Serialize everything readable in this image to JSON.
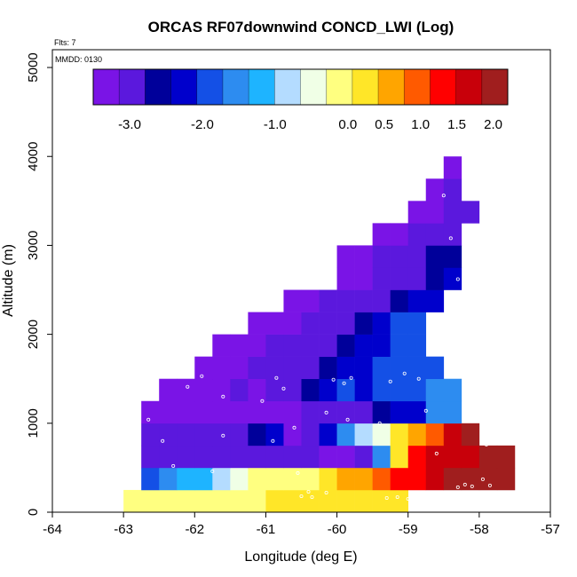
{
  "chart_data": {
    "type": "heatmap",
    "title": "ORCAS RF07downwind CONCD_LWI (Log)",
    "xlabel": "Longitude (deg E)",
    "ylabel": "Altitude (m)",
    "flts_note": "Flts: 7",
    "mmdd_note": "MMDD: 0130",
    "xlim": [
      -64,
      -57
    ],
    "ylim": [
      0,
      5200
    ],
    "x_ticks": [
      -64,
      -63,
      -62,
      -61,
      -60,
      -59,
      -58,
      -57
    ],
    "x_tick_labels": [
      "-64",
      "-63",
      "-62",
      "-61",
      "-60",
      "-59",
      "-58",
      "-57"
    ],
    "y_ticks": [
      0,
      1000,
      2000,
      3000,
      4000,
      5000
    ],
    "y_tick_labels": [
      "0",
      "1000",
      "2000",
      "3000",
      "4000",
      "5000"
    ],
    "colorbar": {
      "range": [
        -3.5,
        2.2
      ],
      "tick_values": [
        -3.0,
        -2.0,
        -1.0,
        0.0,
        0.5,
        1.0,
        1.5,
        2.0
      ],
      "tick_labels": [
        "-3.0",
        "-2.0",
        "-1.0",
        "0.0",
        "0.5",
        "1.0",
        "1.5",
        "2.0"
      ],
      "colors": [
        "#7a14e6",
        "#5b18dd",
        "#00009a",
        "#0000cc",
        "#1450e6",
        "#2d8cf0",
        "#1eb4ff",
        "#b4dcff",
        "#f0ffe6",
        "#ffff80",
        "#ffe628",
        "#ffa500",
        "#ff5a00",
        "#ff0000",
        "#c8000a",
        "#a01e1e"
      ]
    },
    "grid": false,
    "legend": "colorbar-top",
    "cell_size": {
      "dlon": 0.25,
      "dalt": 250
    },
    "rows": [
      {
        "alt_bottom": 0,
        "lon_start": -63.0,
        "values": [
          -0.2,
          -0.2,
          -0.2,
          -0.2,
          -0.2,
          -0.2,
          -0.1,
          -0.1,
          0.1,
          0.1,
          0.2,
          0.2,
          0.3,
          0.3,
          0.3,
          0.3
        ]
      },
      {
        "alt_bottom": 250,
        "lon_start": -62.75,
        "values": [
          -1.8,
          -1.5,
          -1.3,
          -1.1,
          -0.9,
          -0.5,
          -0.1,
          0.0,
          0.0,
          0.0,
          0.3,
          0.5,
          0.7,
          0.9,
          1.2,
          1.4,
          1.6,
          1.9,
          2.0,
          2.0,
          2.1
        ]
      },
      {
        "alt_bottom": 500,
        "lon_start": -62.75,
        "values": [
          -3.0,
          -3.1,
          -3.0,
          -3.0,
          -2.9,
          -3.0,
          -3.0,
          -3.0,
          -3.0,
          -3.1,
          -3.3,
          -3.2,
          -3.0,
          -1.6,
          0.2,
          1.4,
          1.6,
          1.6,
          1.7,
          1.9,
          2.0
        ]
      },
      {
        "alt_bottom": 750,
        "lon_start": -62.75,
        "values": [
          -3.0,
          -3.0,
          -3.0,
          -3.0,
          -3.0,
          -2.8,
          -2.6,
          -2.2,
          -3.5,
          -3.0,
          -2.3,
          -1.6,
          -1.0,
          -0.5,
          0.3,
          0.6,
          1.1,
          1.6,
          2.1
        ]
      },
      {
        "alt_bottom": 1000,
        "lon_start": -62.75,
        "values": [
          -3.4,
          -3.4,
          -3.4,
          -3.4,
          -3.4,
          -3.4,
          -3.4,
          -3.4,
          -3.2,
          -3.0,
          -3.0,
          -2.9,
          -2.8,
          -2.6,
          -2.4,
          -2.1,
          -1.5,
          -1.7
        ]
      },
      {
        "alt_bottom": 1250,
        "lon_start": -62.5,
        "values": [
          -3.4,
          -3.4,
          -3.4,
          -3.4,
          -3.0,
          -3.2,
          -3.0,
          -2.9,
          -2.7,
          -2.3,
          -2.0,
          -2.2,
          -2.0,
          -1.9,
          -1.8,
          -1.7,
          -1.7
        ]
      },
      {
        "alt_bottom": 1500,
        "lon_start": -62.0,
        "values": [
          -3.4,
          -3.4,
          -3.3,
          -3.1,
          -3.0,
          -3.0,
          -2.9,
          -2.6,
          -2.3,
          -2.1,
          -2.0,
          -1.9,
          -1.8,
          -1.8
        ]
      },
      {
        "alt_bottom": 1750,
        "lon_start": -61.75,
        "values": [
          -3.4,
          -3.4,
          -3.4,
          -3.1,
          -3.0,
          -2.9,
          -2.8,
          -2.5,
          -2.2,
          -2.1,
          -1.9,
          -1.9
        ]
      },
      {
        "alt_bottom": 2000,
        "lon_start": -61.25,
        "values": [
          -3.4,
          -3.4,
          -3.3,
          -3.1,
          -3.0,
          -2.8,
          -2.6,
          -2.3,
          -2.0,
          -2.0
        ]
      },
      {
        "alt_bottom": 2250,
        "lon_start": -60.75,
        "values": [
          -3.4,
          -3.3,
          -3.1,
          -3.0,
          -2.9,
          -2.8,
          -2.5,
          -2.3,
          -2.1
        ]
      },
      {
        "alt_bottom": 2500,
        "lon_start": -60.0,
        "values": [
          -3.4,
          -3.2,
          -3.0,
          -3.0,
          -2.8,
          -2.6,
          -2.4
        ]
      },
      {
        "alt_bottom": 2750,
        "lon_start": -60.0,
        "values": [
          -3.4,
          -3.3,
          -3.1,
          -2.9,
          -2.8,
          -2.7,
          -2.5
        ]
      },
      {
        "alt_bottom": 3000,
        "lon_start": -59.5,
        "values": [
          -3.4,
          -3.3,
          -3.1,
          -3.0,
          -2.8
        ]
      },
      {
        "alt_bottom": 3250,
        "lon_start": -59.0,
        "values": [
          -3.4,
          -3.4,
          -3.0,
          -2.9
        ]
      },
      {
        "alt_bottom": 3500,
        "lon_start": -58.75,
        "values": [
          -3.4,
          -3.1
        ]
      },
      {
        "alt_bottom": 3750,
        "lon_start": -58.5,
        "values": [
          -3.4
        ]
      }
    ],
    "sample_points": [
      [
        -62.65,
        1040
      ],
      [
        -62.45,
        800
      ],
      [
        -62.3,
        520
      ],
      [
        -62.1,
        1410
      ],
      [
        -61.9,
        1530
      ],
      [
        -61.6,
        1300
      ],
      [
        -61.6,
        860
      ],
      [
        -61.05,
        1250
      ],
      [
        -60.85,
        1510
      ],
      [
        -60.75,
        1390
      ],
      [
        -60.6,
        950
      ],
      [
        -60.15,
        1120
      ],
      [
        -60.05,
        1490
      ],
      [
        -59.9,
        1450
      ],
      [
        -59.85,
        1040
      ],
      [
        -59.8,
        1510
      ],
      [
        -59.4,
        1000
      ],
      [
        -59.25,
        1470
      ],
      [
        -59.05,
        1560
      ],
      [
        -58.85,
        1500
      ],
      [
        -58.75,
        1140
      ],
      [
        -58.6,
        660
      ],
      [
        -58.5,
        3560
      ],
      [
        -58.4,
        3080
      ],
      [
        -58.3,
        2620
      ],
      [
        -58.25,
        2150
      ],
      [
        -58.05,
        1680
      ],
      [
        -57.95,
        1200
      ],
      [
        -57.9,
        760
      ],
      [
        -57.85,
        300
      ],
      [
        -57.95,
        370
      ],
      [
        -58.1,
        290
      ],
      [
        -58.2,
        310
      ],
      [
        -58.3,
        280
      ],
      [
        -63.1,
        580
      ],
      [
        -60.15,
        220
      ],
      [
        -60.35,
        170
      ],
      [
        -60.5,
        180
      ],
      [
        -60.4,
        230
      ],
      [
        -59.3,
        160
      ],
      [
        -59.15,
        170
      ],
      [
        -59.0,
        150
      ],
      [
        -60.9,
        800
      ],
      [
        -60.55,
        440
      ],
      [
        -61.75,
        460
      ]
    ]
  }
}
